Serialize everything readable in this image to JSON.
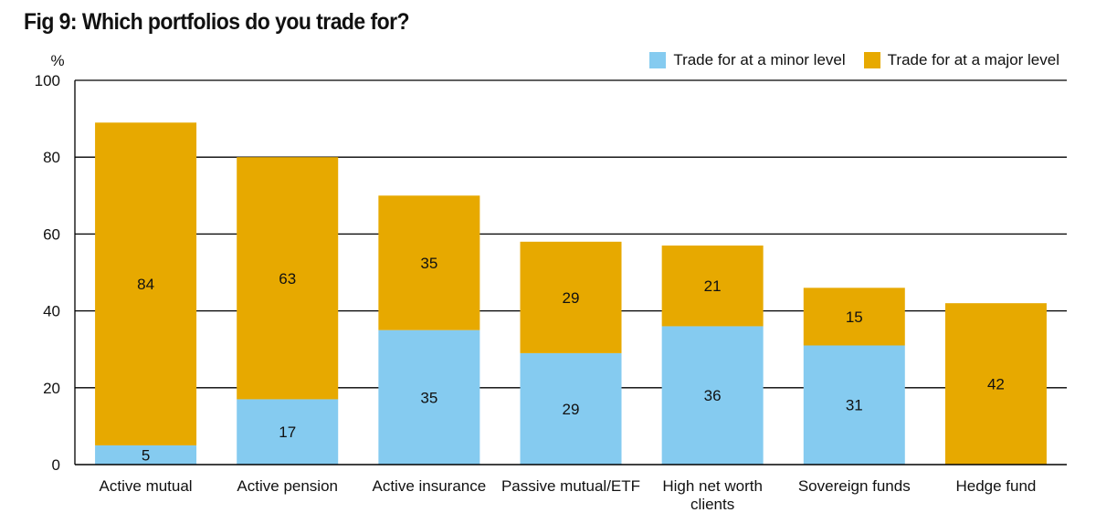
{
  "chart_data": {
    "type": "bar",
    "stacked": true,
    "title": "Fig 9: Which portfolios do you trade for?",
    "ylabel": "%",
    "ylim": [
      0,
      100
    ],
    "yticks": [
      0,
      20,
      40,
      60,
      80,
      100
    ],
    "categories": [
      "Active mutual",
      "Active pension",
      "Active insurance",
      "Passive mutual/ETF",
      "High net worth clients",
      "Sovereign funds",
      "Hedge fund"
    ],
    "series": [
      {
        "name": "Trade for at a minor level",
        "color": "#85cbf0",
        "values": [
          5,
          17,
          35,
          29,
          36,
          31,
          0
        ]
      },
      {
        "name": "Trade for at a major level",
        "color": "#e7a900",
        "values": [
          84,
          63,
          35,
          29,
          21,
          15,
          42
        ]
      }
    ],
    "legend_position": "top-right"
  }
}
